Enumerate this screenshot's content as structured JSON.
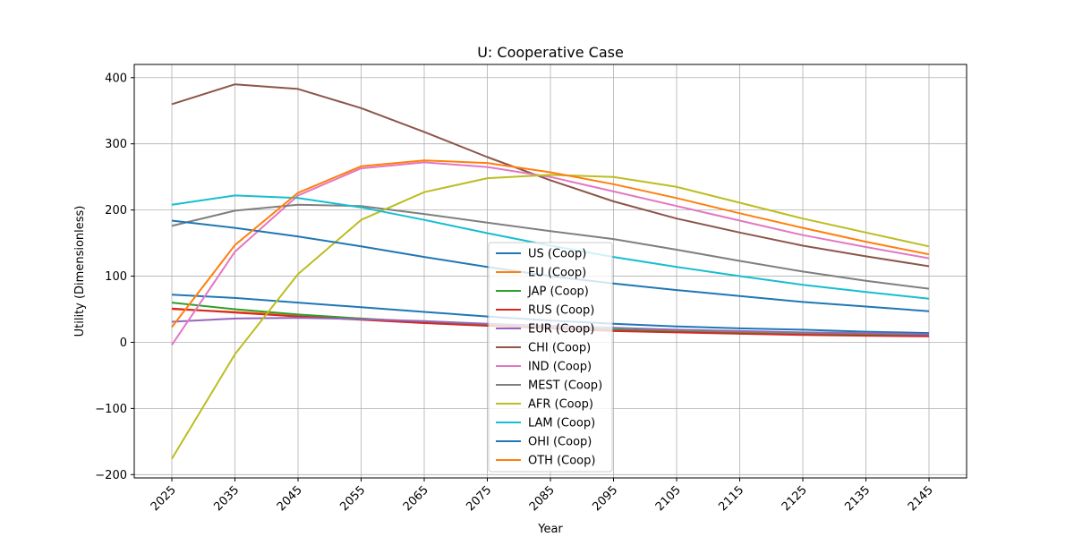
{
  "chart_data": {
    "type": "line",
    "title": "U: Cooperative Case",
    "xlabel": "Year",
    "ylabel": "Utility (Dimensionless)",
    "ylim": [
      -205,
      420
    ],
    "yticks": [
      -200,
      -100,
      0,
      100,
      200,
      300,
      400
    ],
    "ytick_labels": [
      "−200",
      "−100",
      "0",
      "100",
      "200",
      "300",
      "400"
    ],
    "x": [
      2025,
      2035,
      2045,
      2055,
      2065,
      2075,
      2085,
      2095,
      2105,
      2115,
      2125,
      2135,
      2145
    ],
    "x_labels": [
      "2025",
      "2035",
      "2045",
      "2055",
      "2065",
      "2075",
      "2085",
      "2095",
      "2105",
      "2115",
      "2125",
      "2135",
      "2145"
    ],
    "grid": true,
    "legend_position": "center",
    "series": [
      {
        "name": "US (Coop)",
        "color": "#1f77b4",
        "values": [
          72,
          67,
          60,
          53,
          46,
          39,
          33,
          28,
          24,
          21,
          19,
          16,
          14
        ]
      },
      {
        "name": "EU (Coop)",
        "color": "#ff7f0e",
        "values": [
          50,
          46,
          41,
          36,
          31,
          27,
          23,
          19,
          17,
          15,
          13,
          12,
          10
        ]
      },
      {
        "name": "JAP (Coop)",
        "color": "#2ca02c",
        "values": [
          60,
          50,
          42,
          36,
          30,
          26,
          22,
          19,
          16,
          14,
          12,
          11,
          10
        ]
      },
      {
        "name": "RUS (Coop)",
        "color": "#d62728",
        "values": [
          51,
          45,
          39,
          34,
          29,
          25,
          21,
          17,
          15,
          13,
          11,
          10,
          9
        ]
      },
      {
        "name": "EUR (Coop)",
        "color": "#9467bd",
        "values": [
          31,
          36,
          37,
          35,
          32,
          28,
          25,
          22,
          19,
          17,
          15,
          14,
          12
        ]
      },
      {
        "name": "CHI (Coop)",
        "color": "#8c564b",
        "values": [
          360,
          390,
          383,
          354,
          318,
          280,
          245,
          213,
          187,
          166,
          146,
          130,
          115
        ]
      },
      {
        "name": "IND (Coop)",
        "color": "#e377c2",
        "values": [
          -4,
          137,
          222,
          263,
          272,
          265,
          250,
          228,
          206,
          184,
          162,
          144,
          127
        ]
      },
      {
        "name": "MEST (Coop)",
        "color": "#7f7f7f",
        "values": [
          176,
          199,
          208,
          206,
          194,
          181,
          168,
          156,
          140,
          123,
          107,
          93,
          81
        ]
      },
      {
        "name": "AFR (Coop)",
        "color": "#bcbd22",
        "values": [
          -176,
          -18,
          103,
          185,
          227,
          248,
          253,
          250,
          235,
          211,
          187,
          166,
          145
        ]
      },
      {
        "name": "LAM (Coop)",
        "color": "#17becf",
        "values": [
          208,
          222,
          218,
          204,
          185,
          165,
          146,
          129,
          114,
          100,
          87,
          76,
          66
        ]
      },
      {
        "name": "OHI (Coop)",
        "color": "#1f77b4",
        "values": [
          184,
          173,
          160,
          145,
          129,
          114,
          100,
          89,
          79,
          70,
          61,
          54,
          47
        ]
      },
      {
        "name": "OTH (Coop)",
        "color": "#ff7f0e",
        "values": [
          23,
          147,
          226,
          266,
          275,
          271,
          257,
          239,
          218,
          195,
          173,
          152,
          133
        ]
      }
    ]
  }
}
